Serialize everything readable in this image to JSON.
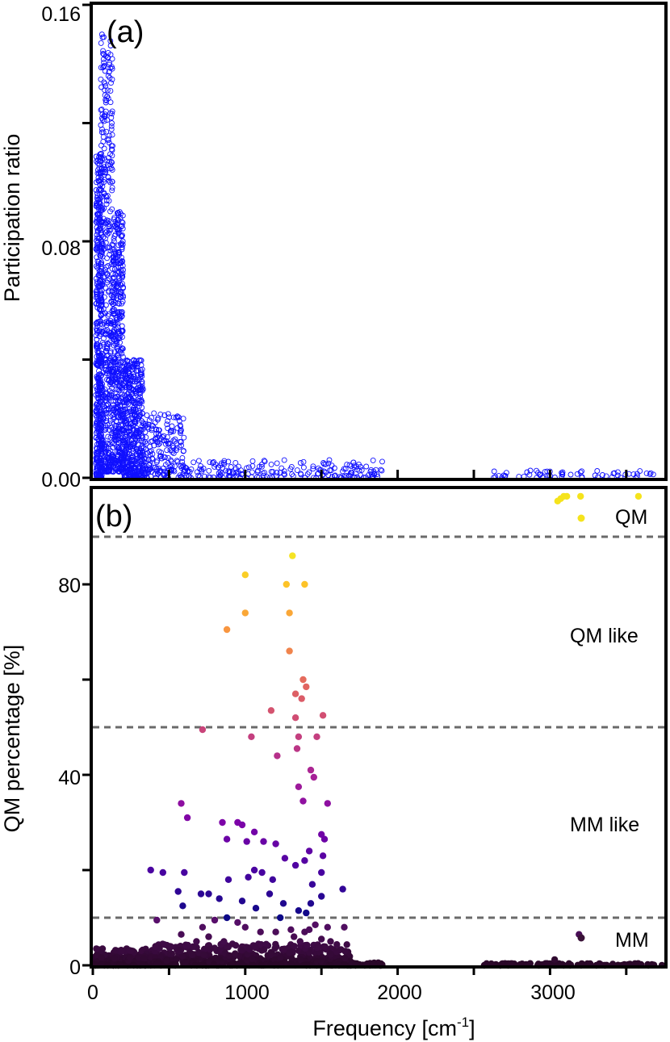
{
  "figure": {
    "panel_a_label": "(a)",
    "panel_b_label": "(b)"
  },
  "chart_data": [
    {
      "type": "scatter",
      "panel": "(a)",
      "xlabel": "",
      "ylabel": "Participation ratio",
      "xlim": [
        0,
        3750
      ],
      "ylim": [
        0.0,
        0.16
      ],
      "yticks": [
        "0.00",
        "0.08",
        "0.16"
      ],
      "marker": "open circle",
      "color": "#1010ff",
      "bands": [
        {
          "x_range": [
            20,
            60
          ],
          "y_range": [
            0.0,
            0.11
          ],
          "density": "dense"
        },
        {
          "x_range": [
            50,
            130
          ],
          "y_range": [
            0.002,
            0.15
          ],
          "density": "dense"
        },
        {
          "x_range": [
            130,
            200
          ],
          "y_range": [
            0.002,
            0.09
          ],
          "density": "dense"
        },
        {
          "x_range": [
            200,
            330
          ],
          "y_range": [
            0.0,
            0.04
          ],
          "density": "dense"
        },
        {
          "x_range": [
            330,
            600
          ],
          "y_range": [
            0.0,
            0.022
          ],
          "density": "medium"
        },
        {
          "x_range": [
            600,
            1900
          ],
          "y_range": [
            0.0,
            0.006
          ],
          "density": "medium"
        },
        {
          "x_range": [
            2600,
            3700
          ],
          "y_range": [
            0.0,
            0.0025
          ],
          "density": "sparse"
        }
      ],
      "peak": {
        "x": 60,
        "y": 0.15
      }
    },
    {
      "type": "scatter",
      "panel": "(b)",
      "xlabel": "Frequency [cm",
      "xlabel_sup": "-1",
      "xlabel_end": "]",
      "ylabel": "QM percentage [%]",
      "xlim": [
        0,
        3750
      ],
      "ylim": [
        0,
        100
      ],
      "xticks": [
        0,
        1000,
        2000,
        3000
      ],
      "yticks": [
        0,
        40,
        80
      ],
      "colormap": "plasma (dark purple → yellow by QM %)",
      "thresholds": [
        10,
        50,
        90
      ],
      "regions": [
        {
          "label": "QM",
          "color": "#f5e31c"
        },
        {
          "label": "QM like"
        },
        {
          "label": "MM like"
        },
        {
          "label": "MM",
          "color": "#3a1238"
        }
      ],
      "points": [
        [
          3050,
          97.5
        ],
        [
          3070,
          98
        ],
        [
          3090,
          98.5
        ],
        [
          3110,
          98.5
        ],
        [
          3200,
          98.5
        ],
        [
          3580,
          98.5
        ],
        [
          1310,
          86
        ],
        [
          1000,
          82
        ],
        [
          1270,
          80
        ],
        [
          1390,
          80
        ],
        [
          1000,
          74
        ],
        [
          1290,
          74
        ],
        [
          880,
          70.5
        ],
        [
          1290,
          66
        ],
        [
          1380,
          60
        ],
        [
          1400,
          58.5
        ],
        [
          1330,
          57
        ],
        [
          1370,
          56
        ],
        [
          1170,
          53.5
        ],
        [
          1330,
          52
        ],
        [
          1510,
          52.5
        ],
        [
          720,
          49.5
        ],
        [
          1040,
          48
        ],
        [
          1470,
          48
        ],
        [
          1350,
          48
        ],
        [
          1210,
          44
        ],
        [
          1340,
          45.5
        ],
        [
          1430,
          41
        ],
        [
          1450,
          39.5
        ],
        [
          1350,
          37.5
        ],
        [
          1380,
          34.5
        ],
        [
          580,
          34
        ],
        [
          1540,
          34
        ],
        [
          620,
          31
        ],
        [
          850,
          30
        ],
        [
          950,
          30
        ],
        [
          980,
          29.5
        ],
        [
          1060,
          28
        ],
        [
          1500,
          27.5
        ],
        [
          880,
          26.5
        ],
        [
          1010,
          26
        ],
        [
          1120,
          26
        ],
        [
          1200,
          25.5
        ],
        [
          1520,
          26.5
        ],
        [
          1420,
          24
        ],
        [
          1510,
          23
        ],
        [
          1260,
          22.5
        ],
        [
          1390,
          22
        ],
        [
          1330,
          21
        ],
        [
          1060,
          20
        ],
        [
          380,
          20
        ],
        [
          460,
          19.5
        ],
        [
          600,
          19.5
        ],
        [
          1110,
          19.5
        ],
        [
          1500,
          19.5
        ],
        [
          1020,
          18.5
        ],
        [
          890,
          18
        ],
        [
          1180,
          18
        ],
        [
          1440,
          17
        ],
        [
          1640,
          16
        ],
        [
          560,
          15.5
        ],
        [
          710,
          15
        ],
        [
          760,
          15
        ],
        [
          1160,
          15
        ],
        [
          1500,
          14.5
        ],
        [
          830,
          14
        ],
        [
          980,
          13.5
        ],
        [
          1430,
          13
        ],
        [
          590,
          12.5
        ],
        [
          1250,
          13
        ],
        [
          1070,
          12
        ],
        [
          1350,
          11.5
        ],
        [
          1400,
          11
        ],
        [
          420,
          9.5
        ],
        [
          880,
          10
        ],
        [
          1230,
          10
        ],
        [
          800,
          9.5
        ],
        [
          950,
          9
        ],
        [
          1460,
          8.5
        ],
        [
          1540,
          8
        ],
        [
          1650,
          8
        ],
        [
          720,
          8
        ],
        [
          1000,
          8
        ],
        [
          1300,
          7.5
        ],
        [
          1420,
          7.5
        ],
        [
          1390,
          7
        ],
        [
          1100,
          7
        ],
        [
          1200,
          7
        ],
        [
          3190,
          6.5
        ],
        [
          580,
          6.5
        ],
        [
          760,
          6
        ],
        [
          1320,
          6
        ],
        [
          1500,
          5.5
        ],
        [
          1560,
          5
        ],
        [
          1360,
          5
        ],
        [
          680,
          5
        ],
        [
          860,
          5
        ],
        [
          3030,
          1.2
        ]
      ]
    }
  ]
}
